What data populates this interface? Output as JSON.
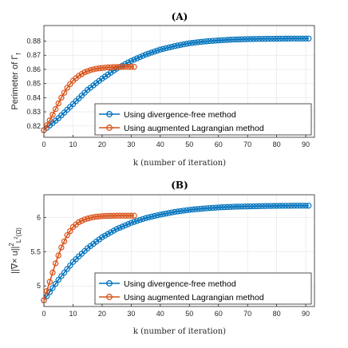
{
  "colors": {
    "blue": "#0072BD",
    "orange": "#D95319"
  },
  "legend": [
    "Using divergence-free method",
    "Using augmented Lagrangian method"
  ],
  "chart_data": [
    {
      "type": "line",
      "title": "(A)",
      "xlabel": "k (number of iteration)",
      "ylabel": "Perimeter of Γ_f",
      "ylabel_main": "Perimeter of Γ",
      "ylabel_sub": "f",
      "xlim": [
        0,
        93
      ],
      "ylim": [
        0.812,
        0.891
      ],
      "xticks": [
        "0",
        "10",
        "20",
        "30",
        "40",
        "50",
        "60",
        "70",
        "80",
        "90"
      ],
      "yticks": [
        "0.82",
        "0.83",
        "0.84",
        "0.85",
        "0.86",
        "0.87",
        "0.88"
      ],
      "grid": true,
      "legend_location": "lower-right",
      "series": [
        {
          "name": "Using divergence-free method",
          "color": "blue",
          "x": [
            0,
            5,
            10,
            15,
            20,
            25,
            30,
            35,
            40,
            45,
            50,
            55,
            60,
            65,
            70,
            75,
            80,
            85,
            90,
            91
          ],
          "y": [
            0.817,
            0.8255,
            0.8355,
            0.8455,
            0.8535,
            0.8605,
            0.866,
            0.8705,
            0.874,
            0.8765,
            0.8785,
            0.8797,
            0.8805,
            0.8811,
            0.8814,
            0.8816,
            0.8817,
            0.8818,
            0.8818,
            0.8818
          ]
        },
        {
          "name": "Using augmented Lagrangian method",
          "color": "orange",
          "x": [
            0,
            2,
            4,
            6,
            8,
            10,
            12,
            14,
            16,
            18,
            20,
            22,
            24,
            26,
            28,
            30,
            31
          ],
          "y": [
            0.817,
            0.824,
            0.832,
            0.84,
            0.847,
            0.852,
            0.8555,
            0.858,
            0.8595,
            0.8605,
            0.861,
            0.8614,
            0.8616,
            0.8617,
            0.8618,
            0.8618,
            0.8618
          ]
        }
      ]
    },
    {
      "type": "line",
      "title": "(B)",
      "xlabel": "k (number of iteration)",
      "ylabel": "||∇×u||²_L²(Ω)",
      "ylabel_main": "||∇× u||",
      "ylabel_sup": "2",
      "ylabel_sub": "L",
      "ylabel_sub2": "2",
      "ylabel_omega": "(Ω)",
      "xlim": [
        0,
        93
      ],
      "ylim": [
        4.7,
        6.33
      ],
      "xticks": [
        "0",
        "10",
        "20",
        "30",
        "40",
        "50",
        "60",
        "70",
        "80",
        "90"
      ],
      "yticks": [
        "5",
        "5.5",
        "6"
      ],
      "grid": true,
      "legend_location": "lower-right",
      "series": [
        {
          "name": "Using divergence-free method",
          "color": "blue",
          "x": [
            0,
            5,
            10,
            15,
            20,
            25,
            30,
            35,
            40,
            45,
            50,
            55,
            60,
            65,
            70,
            75,
            80,
            85,
            90,
            91
          ],
          "y": [
            4.79,
            5.09,
            5.35,
            5.55,
            5.71,
            5.83,
            5.92,
            5.99,
            6.04,
            6.08,
            6.11,
            6.13,
            6.145,
            6.155,
            6.16,
            6.165,
            6.168,
            6.17,
            6.171,
            6.171
          ]
        },
        {
          "name": "Using augmented Lagrangian method",
          "color": "orange",
          "x": [
            0,
            2,
            4,
            6,
            8,
            10,
            12,
            14,
            16,
            18,
            20,
            22,
            24,
            26,
            28,
            30,
            31
          ],
          "y": [
            4.79,
            5.06,
            5.33,
            5.56,
            5.74,
            5.86,
            5.93,
            5.97,
            5.995,
            6.01,
            6.018,
            6.022,
            6.024,
            6.025,
            6.025,
            6.025,
            6.025
          ]
        }
      ]
    }
  ]
}
